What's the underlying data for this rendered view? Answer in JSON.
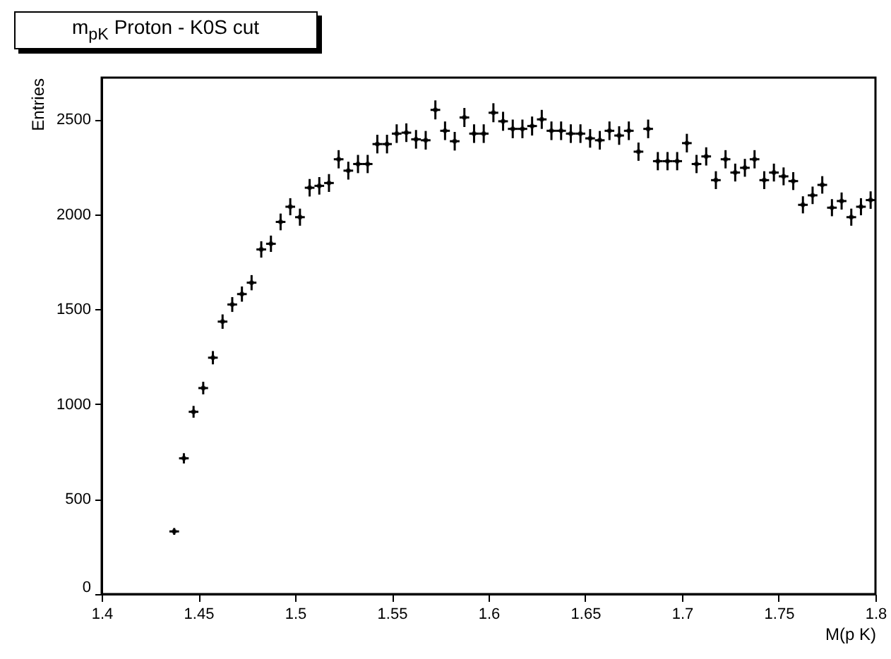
{
  "chart_data": {
    "type": "scatter",
    "title": "m$_{pK}$ Proton - K0S cut",
    "xlabel": "M(p K)",
    "ylabel": "Entries",
    "x": [
      1.4375,
      1.4425,
      1.4475,
      1.4525,
      1.4575,
      1.4625,
      1.4675,
      1.4725,
      1.4775,
      1.4825,
      1.4875,
      1.4925,
      1.4975,
      1.5025,
      1.5075,
      1.5125,
      1.5175,
      1.5225,
      1.5275,
      1.5325,
      1.5375,
      1.5425,
      1.5475,
      1.5525,
      1.5575,
      1.5625,
      1.5675,
      1.5725,
      1.5775,
      1.5825,
      1.5875,
      1.5925,
      1.5975,
      1.6025,
      1.6075,
      1.6125,
      1.6175,
      1.6225,
      1.6275,
      1.6325,
      1.6375,
      1.6425,
      1.6475,
      1.6525,
      1.6575,
      1.6625,
      1.6675,
      1.6725,
      1.6775,
      1.6825,
      1.6875,
      1.6925,
      1.6975,
      1.7025,
      1.7075,
      1.7125,
      1.7175,
      1.7225,
      1.7275,
      1.7325,
      1.7375,
      1.7425,
      1.7475,
      1.7525,
      1.7575,
      1.7625,
      1.7675,
      1.7725,
      1.7775,
      1.7825,
      1.7875,
      1.7925,
      1.7975
    ],
    "values": [
      330,
      715,
      960,
      1085,
      1245,
      1435,
      1525,
      1580,
      1640,
      1815,
      1845,
      1960,
      2040,
      1985,
      2140,
      2150,
      2165,
      2290,
      2230,
      2265,
      2265,
      2370,
      2370,
      2425,
      2430,
      2395,
      2390,
      2550,
      2440,
      2385,
      2510,
      2425,
      2425,
      2535,
      2490,
      2450,
      2450,
      2465,
      2500,
      2440,
      2440,
      2425,
      2425,
      2400,
      2390,
      2440,
      2415,
      2440,
      2330,
      2450,
      2280,
      2280,
      2280,
      2375,
      2265,
      2305,
      2180,
      2290,
      2220,
      2245,
      2290,
      2180,
      2220,
      2200,
      2175,
      2050,
      2100,
      2155,
      2035,
      2070,
      1985,
      2040,
      2075
    ],
    "errors": [
      18,
      27,
      31,
      33,
      35,
      38,
      39,
      40,
      40,
      43,
      43,
      44,
      45,
      45,
      46,
      46,
      47,
      48,
      47,
      48,
      48,
      49,
      49,
      49,
      49,
      49,
      49,
      50,
      49,
      49,
      50,
      49,
      49,
      50,
      50,
      49,
      49,
      50,
      50,
      49,
      49,
      49,
      49,
      49,
      49,
      49,
      49,
      49,
      48,
      49,
      48,
      48,
      48,
      49,
      48,
      48,
      47,
      48,
      47,
      47,
      48,
      47,
      47,
      47,
      47,
      45,
      46,
      46,
      45,
      45,
      45,
      45,
      46
    ],
    "xerrors": [
      0.0025,
      0.0025,
      0.0025,
      0.0025,
      0.0025,
      0.0025,
      0.0025,
      0.0025,
      0.0025,
      0.0025,
      0.0025,
      0.0025,
      0.0025,
      0.0025,
      0.0025,
      0.0025,
      0.0025,
      0.0025,
      0.0025,
      0.0025,
      0.0025,
      0.0025,
      0.0025,
      0.0025,
      0.0025,
      0.0025,
      0.0025,
      0.0025,
      0.0025,
      0.0025,
      0.0025,
      0.0025,
      0.0025,
      0.0025,
      0.0025,
      0.0025,
      0.0025,
      0.0025,
      0.0025,
      0.0025,
      0.0025,
      0.0025,
      0.0025,
      0.0025,
      0.0025,
      0.0025,
      0.0025,
      0.0025,
      0.0025,
      0.0025,
      0.0025,
      0.0025,
      0.0025,
      0.0025,
      0.0025,
      0.0025,
      0.0025,
      0.0025,
      0.0025,
      0.0025,
      0.0025,
      0.0025,
      0.0025,
      0.0025,
      0.0025,
      0.0025,
      0.0025,
      0.0025,
      0.0025,
      0.0025,
      0.0025,
      0.0025,
      0.0025
    ],
    "color": "#000000",
    "xlim": [
      1.4,
      1.8
    ],
    "xticks": [
      1.4,
      1.45,
      1.5,
      1.55,
      1.6,
      1.65,
      1.7,
      1.75,
      1.8
    ],
    "ylim": [
      0,
      2720
    ],
    "yticks": [
      0,
      500,
      1000,
      1500,
      2000,
      2500
    ],
    "grid": false
  }
}
